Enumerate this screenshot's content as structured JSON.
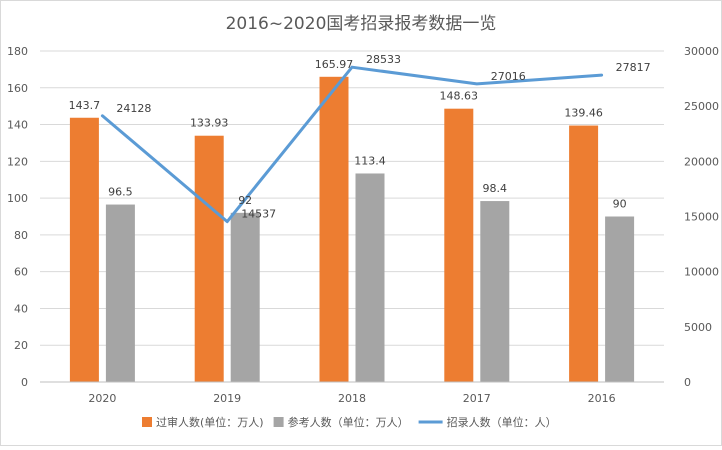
{
  "chart_data": {
    "type": "bar",
    "title": "2016~2020国考招录报考数据一览",
    "categories": [
      "2020",
      "2019",
      "2018",
      "2017",
      "2016"
    ],
    "series": [
      {
        "name": "过审人数(单位：万人)",
        "kind": "bar",
        "axis": "left",
        "color": "#ED7D31",
        "values": [
          143.7,
          133.93,
          165.97,
          148.63,
          139.46
        ],
        "labels": [
          "143.7",
          "133.93",
          "165.97",
          "148.63",
          "139.46"
        ]
      },
      {
        "name": "参考人数（单位：万人）",
        "kind": "bar",
        "axis": "left",
        "color": "#A5A5A5",
        "values": [
          96.5,
          92,
          113.4,
          98.4,
          90
        ],
        "labels": [
          "96.5",
          "92",
          "113.4",
          "98.4",
          "90"
        ]
      },
      {
        "name": "招录人数（单位：人）",
        "kind": "line",
        "axis": "right",
        "color": "#5B9BD5",
        "values": [
          24128,
          14537,
          28533,
          27016,
          27817
        ],
        "labels": [
          "24128",
          "14537",
          "28533",
          "27016",
          "27817"
        ]
      }
    ],
    "ylim_left": [
      0,
      180
    ],
    "yticks_left": [
      "0",
      "20",
      "40",
      "60",
      "80",
      "100",
      "120",
      "140",
      "160",
      "180"
    ],
    "ylim_right": [
      0,
      30000
    ],
    "yticks_right": [
      "0",
      "5000",
      "10000",
      "15000",
      "20000",
      "25000",
      "30000"
    ],
    "grid": true,
    "legend_position": "bottom"
  }
}
